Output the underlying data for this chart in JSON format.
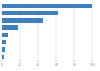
{
  "values": [
    100,
    62,
    45,
    18,
    7,
    4,
    3,
    2
  ],
  "bar_color": "#3d80c0",
  "background_color": "#ffffff",
  "grid_color": "#cccccc",
  "n_bars": 8
}
